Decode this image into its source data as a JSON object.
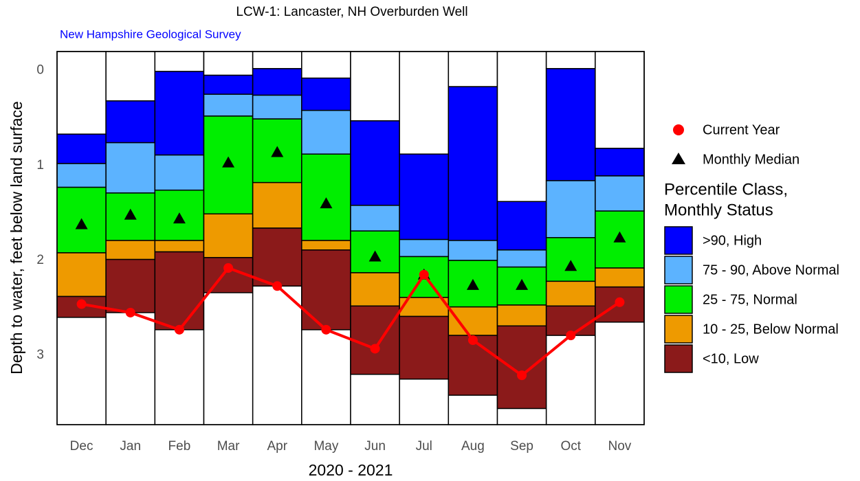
{
  "chart_data": {
    "type": "floating_stacked_bar",
    "title": "LCW-1: Lancaster, NH Overburden Well",
    "subtitle": "New Hampshire Geological Survey",
    "y_label": "Depth to water, feet below land surface",
    "x_label": "2020 - 2021",
    "categories": [
      "Dec",
      "Jan",
      "Feb",
      "Mar",
      "Apr",
      "May",
      "Jun",
      "Jul",
      "Aug",
      "Sep",
      "Oct",
      "Nov"
    ],
    "ylim": [
      3.73,
      -0.2
    ],
    "yticks": [
      0,
      1,
      2,
      3
    ],
    "legend_title": [
      "Percentile Class,",
      "Monthly Status"
    ],
    "base": [
      0.67,
      0.32,
      0.01,
      0.05,
      -0.02,
      0.08,
      0.53,
      0.88,
      0.17,
      1.38,
      -0.02,
      0.82
    ],
    "series": [
      {
        "name": ">90, High",
        "color": "#0000ff",
        "values": [
          0.31,
          0.44,
          0.88,
          0.2,
          0.28,
          0.34,
          0.89,
          0.9,
          1.62,
          0.51,
          1.18,
          0.29
        ]
      },
      {
        "name": "75 - 90, Above Normal",
        "color": "#5cb3ff",
        "values": [
          0.25,
          0.53,
          0.37,
          0.23,
          0.25,
          0.46,
          0.27,
          0.18,
          0.21,
          0.18,
          0.6,
          0.37
        ]
      },
      {
        "name": "25 - 75, Normal",
        "color": "#00ee00",
        "values": [
          0.69,
          0.5,
          0.53,
          1.03,
          0.67,
          0.91,
          0.44,
          0.43,
          0.49,
          0.4,
          0.46,
          0.6
        ]
      },
      {
        "name": "10 - 25, Below Normal",
        "color": "#ee9a00",
        "values": [
          0.46,
          0.2,
          0.12,
          0.46,
          0.48,
          0.1,
          0.35,
          0.2,
          0.3,
          0.22,
          0.26,
          0.2
        ]
      },
      {
        "name": "<10, Low",
        "color": "#8b1a1a",
        "values": [
          0.22,
          0.56,
          0.82,
          0.37,
          0.61,
          0.84,
          0.72,
          0.66,
          0.63,
          0.87,
          0.31,
          0.37
        ]
      }
    ],
    "median": {
      "name": "Monthly Median",
      "color": "#000000",
      "values": [
        1.62,
        1.52,
        1.56,
        0.97,
        0.86,
        1.4,
        1.96,
        2.15,
        2.26,
        2.26,
        2.06,
        1.76
      ]
    },
    "current": {
      "name": "Current Year",
      "color": "#ff0000",
      "values": [
        2.46,
        2.55,
        2.73,
        2.08,
        2.27,
        2.73,
        2.93,
        2.15,
        2.84,
        3.21,
        2.79,
        2.44
      ]
    }
  }
}
